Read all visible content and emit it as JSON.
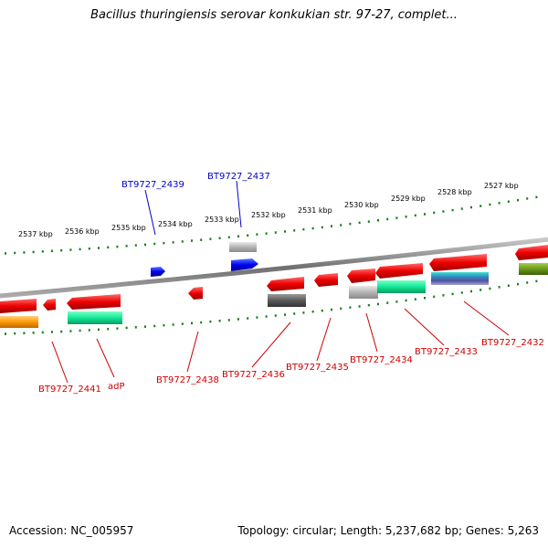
{
  "title": "Bacillus thuringiensis serovar konkukian str. 97-27, complet...",
  "footer": {
    "accession": "Accession: NC_005957",
    "topology": "Topology: circular; Length: 5,237,682 bp; Genes: 5,263"
  },
  "kbp_ticks": [
    "2537 kbp",
    "2536 kbp",
    "2535 kbp",
    "2534 kbp",
    "2533 kbp",
    "2532 kbp",
    "2531 kbp",
    "2530 kbp",
    "2529 kbp",
    "2528 kbp",
    "2527 kbp"
  ],
  "top_labels": [
    "BT9727_2439",
    "BT9727_2437"
  ],
  "bottom_labels": [
    "BT9727_2441",
    "adP",
    "BT9727_2438",
    "BT9727_2436",
    "BT9727_2435",
    "BT9727_2434",
    "BT9727_2433",
    "BT9727_2432"
  ],
  "colors": {
    "forward_strand_label": "#0000cc",
    "reverse_strand_label": "#cc0000",
    "tick": "#1a7a1a",
    "backbone": "#808080"
  }
}
